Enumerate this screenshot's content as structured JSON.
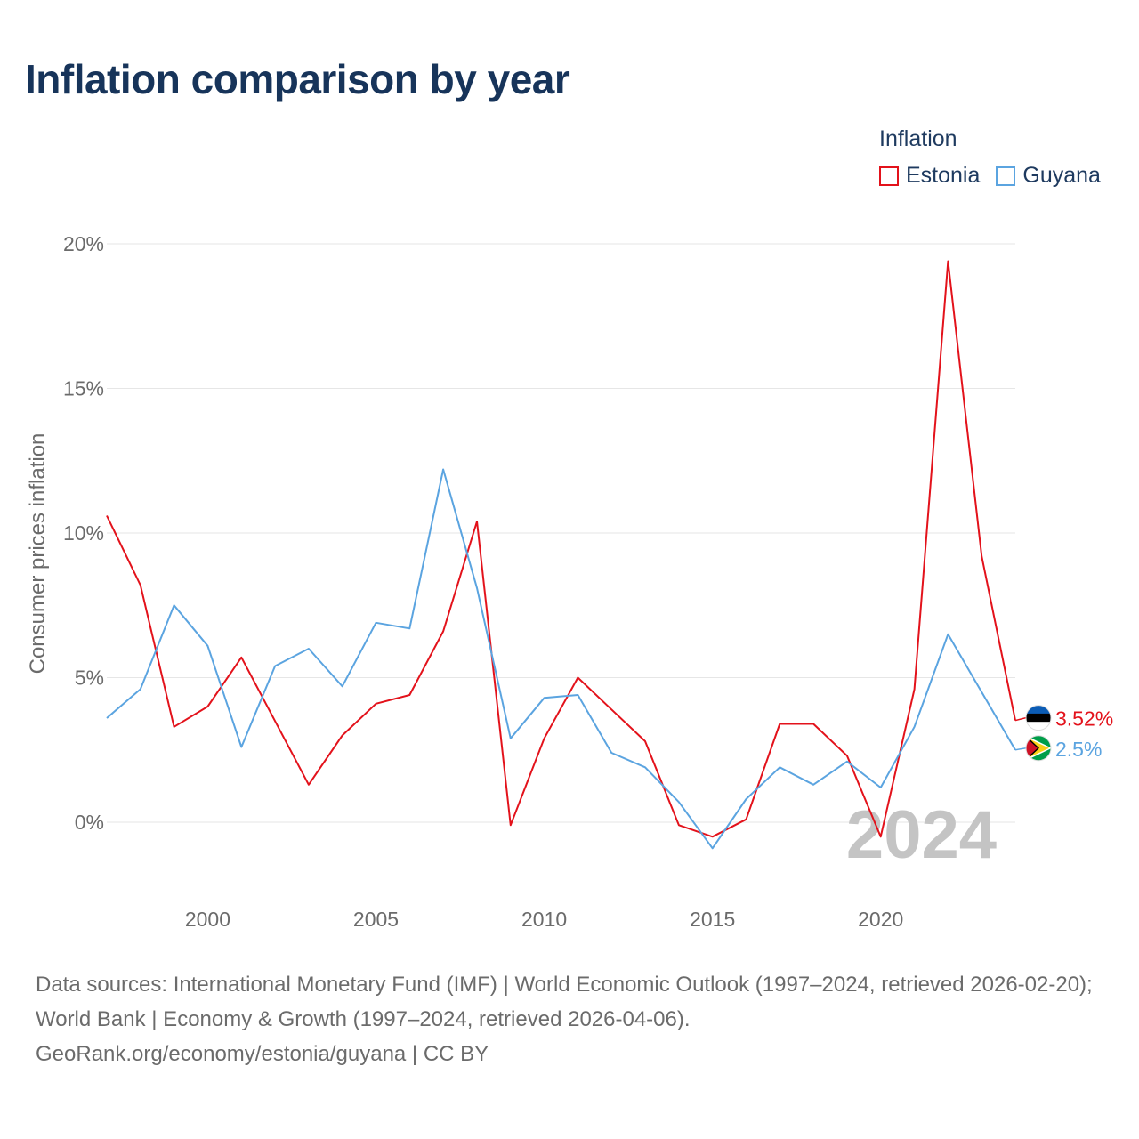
{
  "title": "Inflation comparison by year",
  "legend": {
    "title": "Inflation",
    "items": [
      {
        "label": "Estonia",
        "color": "#e3121b"
      },
      {
        "label": "Guyana",
        "color": "#5ba4e0"
      }
    ]
  },
  "footer": {
    "sources": "Data sources: International Monetary Fund (IMF) | World Economic Outlook (1997–2024, retrieved 2026-02-20); World Bank | Economy & Growth (1997–2024, retrieved 2026-04-06).",
    "credit": "GeoRank.org/economy/estonia/guyana | CC BY"
  },
  "chart_data": {
    "type": "line",
    "title": "Inflation comparison by year",
    "xlabel": "",
    "ylabel": "Consumer prices inflation",
    "xlim": [
      1997,
      2024
    ],
    "ylim": [
      -2,
      20
    ],
    "y_ticks": [
      0,
      5,
      10,
      15,
      20
    ],
    "y_tick_labels": [
      "0%",
      "5%",
      "10%",
      "15%",
      "20%"
    ],
    "x_ticks": [
      2000,
      2005,
      2010,
      2015,
      2020
    ],
    "x_tick_labels": [
      "2000",
      "2005",
      "2010",
      "2015",
      "2020"
    ],
    "watermark_year": "2024",
    "x": [
      1997,
      1998,
      1999,
      2000,
      2001,
      2002,
      2003,
      2004,
      2005,
      2006,
      2007,
      2008,
      2009,
      2010,
      2011,
      2012,
      2013,
      2014,
      2015,
      2016,
      2017,
      2018,
      2019,
      2020,
      2021,
      2022,
      2023,
      2024
    ],
    "series": [
      {
        "name": "Estonia",
        "color": "#e3121b",
        "icon": "estonia-flag-icon",
        "end_label": "3.52%",
        "values": [
          10.6,
          8.2,
          3.3,
          4.0,
          5.7,
          3.5,
          1.3,
          3.0,
          4.1,
          4.4,
          6.6,
          10.4,
          -0.1,
          2.9,
          5.0,
          3.9,
          2.8,
          -0.1,
          -0.5,
          0.1,
          3.4,
          3.4,
          2.3,
          -0.5,
          4.6,
          19.4,
          9.2,
          3.52
        ]
      },
      {
        "name": "Guyana",
        "color": "#5ba4e0",
        "icon": "guyana-flag-icon",
        "end_label": "2.5%",
        "values": [
          3.6,
          4.6,
          7.5,
          6.1,
          2.6,
          5.4,
          6.0,
          4.7,
          6.9,
          6.7,
          12.2,
          8.1,
          2.9,
          4.3,
          4.4,
          2.4,
          1.9,
          0.7,
          -0.9,
          0.8,
          1.9,
          1.3,
          2.1,
          1.2,
          3.3,
          6.5,
          4.5,
          2.5
        ]
      }
    ]
  }
}
